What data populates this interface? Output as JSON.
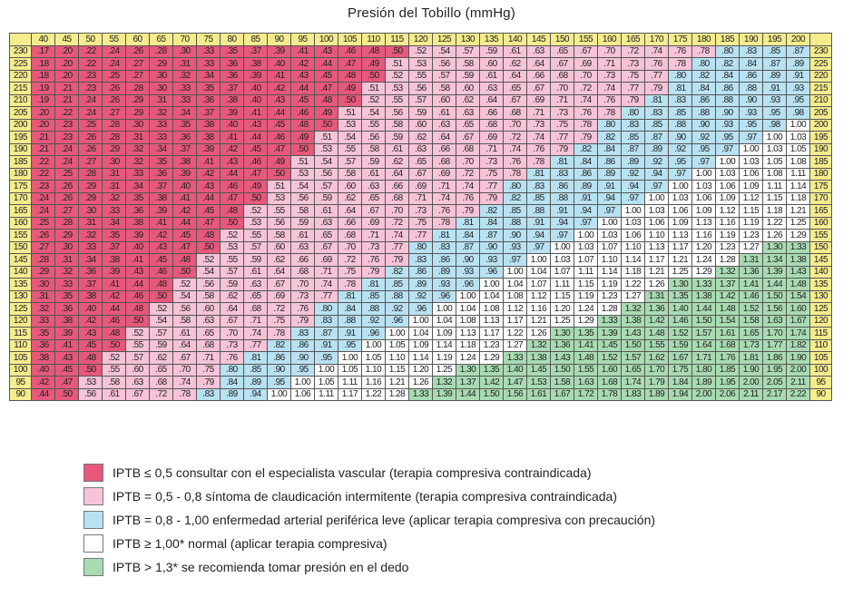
{
  "chart_data": {
    "type": "table",
    "title": "Presión del Tobillo (mmHg)",
    "columns": [
      "40",
      "45",
      "50",
      "55",
      "60",
      "65",
      "70",
      "75",
      "80",
      "85",
      "90",
      "95",
      "100",
      "105",
      "110",
      "115",
      "120",
      "125",
      "130",
      "135",
      "140",
      "145",
      "150",
      "155",
      "160",
      "165",
      "170",
      "175",
      "180",
      "185",
      "190",
      "195",
      "200"
    ],
    "rows": [
      "230",
      "225",
      "220",
      "215",
      "210",
      "205",
      "200",
      "195",
      "190",
      "185",
      "180",
      "175",
      "170",
      "165",
      "160",
      "155",
      "150",
      "145",
      "140",
      "135",
      "130",
      "125",
      "120",
      "115",
      "110",
      "105",
      "100",
      "95",
      "90"
    ],
    "values": [
      [
        ".17",
        ".20",
        ".22",
        ".24",
        ".26",
        ".28",
        ".30",
        ".33",
        ".35",
        ".37",
        ".39",
        ".41",
        ".43",
        ".46",
        ".48",
        ".50",
        ".52",
        ".54",
        ".57",
        ".59",
        ".61",
        ".63",
        ".65",
        ".67",
        ".70",
        ".72",
        ".74",
        ".76",
        ".78",
        ".80",
        ".83",
        ".85",
        ".87"
      ],
      [
        ".18",
        ".20",
        ".22",
        ".24",
        ".27",
        ".29",
        ".31",
        ".33",
        ".36",
        ".38",
        ".40",
        ".42",
        ".44",
        ".47",
        ".49",
        ".51",
        ".53",
        ".56",
        ".58",
        ".60",
        ".62",
        ".64",
        ".67",
        ".69",
        ".71",
        ".73",
        ".76",
        ".78",
        ".80",
        ".82",
        ".84",
        ".87",
        ".89"
      ],
      [
        ".18",
        ".20",
        ".23",
        ".25",
        ".27",
        ".30",
        ".32",
        ".34",
        ".36",
        ".39",
        ".41",
        ".43",
        ".45",
        ".48",
        ".50",
        ".52",
        ".55",
        ".57",
        ".59",
        ".61",
        ".64",
        ".66",
        ".68",
        ".70",
        ".73",
        ".75",
        ".77",
        ".80",
        ".82",
        ".84",
        ".86",
        ".89",
        ".91"
      ],
      [
        ".19",
        ".21",
        ".23",
        ".26",
        ".28",
        ".30",
        ".33",
        ".35",
        ".37",
        ".40",
        ".42",
        ".44",
        ".47",
        ".49",
        ".51",
        ".53",
        ".56",
        ".58",
        ".60",
        ".63",
        ".65",
        ".67",
        ".70",
        ".72",
        ".74",
        ".77",
        ".79",
        ".81",
        ".84",
        ".86",
        ".88",
        ".91",
        ".93"
      ],
      [
        ".19",
        ".21",
        ".24",
        ".26",
        ".29",
        ".31",
        ".33",
        ".36",
        ".38",
        ".40",
        ".43",
        ".45",
        ".48",
        ".50",
        ".52",
        ".55",
        ".57",
        ".60",
        ".62",
        ".64",
        ".67",
        ".69",
        ".71",
        ".74",
        ".76",
        ".79",
        ".81",
        ".83",
        ".86",
        ".88",
        ".90",
        ".93",
        ".95"
      ],
      [
        ".20",
        ".22",
        ".24",
        ".27",
        ".29",
        ".32",
        ".34",
        ".37",
        ".39",
        ".41",
        ".44",
        ".46",
        ".49",
        ".51",
        ".54",
        ".56",
        ".59",
        ".61",
        ".63",
        ".66",
        ".68",
        ".71",
        ".73",
        ".76",
        ".78",
        ".80",
        ".83",
        ".85",
        ".88",
        ".90",
        ".93",
        ".95",
        ".98"
      ],
      [
        ".20",
        ".23",
        ".25",
        ".28",
        ".30",
        ".33",
        ".35",
        ".38",
        ".40",
        ".43",
        ".45",
        ".48",
        ".50",
        ".53",
        ".55",
        ".58",
        ".60",
        ".63",
        ".65",
        ".68",
        ".70",
        ".73",
        ".75",
        ".78",
        ".80",
        ".83",
        ".85",
        ".88",
        ".90",
        ".93",
        ".95",
        ".98",
        "1.00"
      ],
      [
        ".21",
        ".23",
        ".26",
        ".28",
        ".31",
        ".33",
        ".36",
        ".38",
        ".41",
        ".44",
        ".46",
        ".49",
        ".51",
        ".54",
        ".56",
        ".59",
        ".62",
        ".64",
        ".67",
        ".69",
        ".72",
        ".74",
        ".77",
        ".79",
        ".82",
        ".85",
        ".87",
        ".90",
        ".92",
        ".95",
        ".97",
        "1.00",
        "1.03"
      ],
      [
        ".21",
        ".24",
        ".26",
        ".29",
        ".32",
        ".34",
        ".37",
        ".39",
        ".42",
        ".45",
        ".47",
        ".50",
        ".53",
        ".55",
        ".58",
        ".61",
        ".63",
        ".66",
        ".68",
        ".71",
        ".74",
        ".76",
        ".79",
        ".82",
        ".84",
        ".87",
        ".89",
        ".92",
        ".95",
        ".97",
        "1.00",
        "1.03",
        "1.05"
      ],
      [
        ".22",
        ".24",
        ".27",
        ".30",
        ".32",
        ".35",
        ".38",
        ".41",
        ".43",
        ".46",
        ".49",
        ".51",
        ".54",
        ".57",
        ".59",
        ".62",
        ".65",
        ".68",
        ".70",
        ".73",
        ".76",
        ".78",
        ".81",
        ".84",
        ".86",
        ".89",
        ".92",
        ".95",
        ".97",
        "1.00",
        "1.03",
        "1.05",
        "1.08"
      ],
      [
        ".22",
        ".25",
        ".28",
        ".31",
        ".33",
        ".36",
        ".39",
        ".42",
        ".44",
        ".47",
        ".50",
        ".53",
        ".56",
        ".58",
        ".61",
        ".64",
        ".67",
        ".69",
        ".72",
        ".75",
        ".78",
        ".81",
        ".83",
        ".86",
        ".89",
        ".92",
        ".94",
        ".97",
        "1.00",
        "1.03",
        "1.06",
        "1.08",
        "1.11"
      ],
      [
        ".23",
        ".26",
        ".29",
        ".31",
        ".34",
        ".37",
        ".40",
        ".43",
        ".46",
        ".49",
        ".51",
        ".54",
        ".57",
        ".60",
        ".63",
        ".66",
        ".69",
        ".71",
        ".74",
        ".77",
        ".80",
        ".83",
        ".86",
        ".89",
        ".91",
        ".94",
        ".97",
        "1.00",
        "1.03",
        "1.06",
        "1.09",
        "1.11",
        "1.14"
      ],
      [
        ".24",
        ".26",
        ".29",
        ".32",
        ".35",
        ".38",
        ".41",
        ".44",
        ".47",
        ".50",
        ".53",
        ".56",
        ".59",
        ".62",
        ".65",
        ".68",
        ".71",
        ".74",
        ".76",
        ".79",
        ".82",
        ".85",
        ".88",
        ".91",
        ".94",
        ".97",
        "1.00",
        "1.03",
        "1.06",
        "1.09",
        "1.12",
        "1.15",
        "1.18"
      ],
      [
        ".24",
        ".27",
        ".30",
        ".33",
        ".36",
        ".39",
        ".42",
        ".45",
        ".48",
        ".52",
        ".55",
        ".58",
        ".61",
        ".64",
        ".67",
        ".70",
        ".73",
        ".76",
        ".79",
        ".82",
        ".85",
        ".88",
        ".91",
        ".94",
        ".97",
        "1.00",
        "1.03",
        "1.06",
        "1.09",
        "1.12",
        "1.15",
        "1.18",
        "1.21"
      ],
      [
        ".25",
        ".28",
        ".31",
        ".34",
        ".38",
        ".41",
        ".44",
        ".47",
        ".50",
        ".53",
        ".56",
        ".59",
        ".63",
        ".66",
        ".69",
        ".72",
        ".75",
        ".78",
        ".81",
        ".84",
        ".88",
        ".91",
        ".94",
        ".97",
        "1.00",
        "1.03",
        "1.06",
        "1.09",
        "1.13",
        "1.16",
        "1.19",
        "1.22",
        "1.25"
      ],
      [
        ".26",
        ".29",
        ".32",
        ".35",
        ".39",
        ".42",
        ".45",
        ".48",
        ".52",
        ".55",
        ".58",
        ".61",
        ".65",
        ".68",
        ".71",
        ".74",
        ".77",
        ".81",
        ".84",
        ".87",
        ".90",
        ".94",
        ".97",
        "1.00",
        "1.03",
        "1.06",
        "1.10",
        "1.13",
        "1.16",
        "1.19",
        "1.23",
        "1.26",
        "1.29"
      ],
      [
        ".27",
        ".30",
        ".33",
        ".37",
        ".40",
        ".43",
        ".47",
        ".50",
        ".53",
        ".57",
        ".60",
        ".63",
        ".67",
        ".70",
        ".73",
        ".77",
        ".80",
        ".83",
        ".87",
        ".90",
        ".93",
        ".97",
        "1.00",
        "1.03",
        "1.07",
        "1.10",
        "1.13",
        "1.17",
        "1.20",
        "1.23",
        "1.27",
        "1.30",
        "1.33"
      ],
      [
        ".28",
        ".31",
        ".34",
        ".38",
        ".41",
        ".45",
        ".48",
        ".52",
        ".55",
        ".59",
        ".62",
        ".66",
        ".69",
        ".72",
        ".76",
        ".79",
        ".83",
        ".86",
        ".90",
        ".93",
        ".97",
        "1.00",
        "1.03",
        "1.07",
        "1.10",
        "1.14",
        "1.17",
        "1.21",
        "1.24",
        "1.28",
        "1.31",
        "1.34",
        "1.38"
      ],
      [
        ".29",
        ".32",
        ".36",
        ".39",
        ".43",
        ".46",
        ".50",
        ".54",
        ".57",
        ".61",
        ".64",
        ".68",
        ".71",
        ".75",
        ".79",
        ".82",
        ".86",
        ".89",
        ".93",
        ".96",
        "1.00",
        "1.04",
        "1.07",
        "1.11",
        "1.14",
        "1.18",
        "1.21",
        "1.25",
        "1.29",
        "1.32",
        "1.36",
        "1.39",
        "1.43"
      ],
      [
        ".30",
        ".33",
        ".37",
        ".41",
        ".44",
        ".48",
        ".52",
        ".56",
        ".59",
        ".63",
        ".67",
        ".70",
        ".74",
        ".78",
        ".81",
        ".85",
        ".89",
        ".93",
        ".96",
        "1.00",
        "1.04",
        "1.07",
        "1.11",
        "1.15",
        "1.19",
        "1.22",
        "1.26",
        "1.30",
        "1.33",
        "1.37",
        "1.41",
        "1.44",
        "1.48"
      ],
      [
        ".31",
        ".35",
        ".38",
        ".42",
        ".46",
        ".50",
        ".54",
        ".58",
        ".62",
        ".65",
        ".69",
        ".73",
        ".77",
        ".81",
        ".85",
        ".88",
        ".92",
        ".96",
        "1.00",
        "1.04",
        "1.08",
        "1.12",
        "1.15",
        "1.19",
        "1.23",
        "1.27",
        "1.31",
        "1.35",
        "1.38",
        "1.42",
        "1.46",
        "1.50",
        "1.54"
      ],
      [
        ".32",
        ".36",
        ".40",
        ".44",
        ".48",
        ".52",
        ".56",
        ".60",
        ".64",
        ".68",
        ".72",
        ".76",
        ".80",
        ".84",
        ".88",
        ".92",
        ".96",
        "1.00",
        "1.04",
        "1.08",
        "1.12",
        "1.16",
        "1.20",
        "1.24",
        "1.28",
        "1.32",
        "1.36",
        "1.40",
        "1.44",
        "1.48",
        "1.52",
        "1.56",
        "1.60"
      ],
      [
        ".33",
        ".38",
        ".42",
        ".46",
        ".50",
        ".54",
        ".58",
        ".63",
        ".67",
        ".71",
        ".75",
        ".79",
        ".83",
        ".88",
        ".92",
        ".96",
        "1.00",
        "1.04",
        "1.08",
        "1.13",
        "1.17",
        "1.21",
        "1.25",
        "1.29",
        "1.33",
        "1.38",
        "1.42",
        "1.46",
        "1.50",
        "1.54",
        "1.58",
        "1.63",
        "1.67"
      ],
      [
        ".35",
        ".39",
        ".43",
        ".48",
        ".52",
        ".57",
        ".61",
        ".65",
        ".70",
        ".74",
        ".78",
        ".83",
        ".87",
        ".91",
        ".96",
        "1.00",
        "1.04",
        "1.09",
        "1.13",
        "1.17",
        "1.22",
        "1.26",
        "1.30",
        "1.35",
        "1.39",
        "1.43",
        "1.48",
        "1.52",
        "1.57",
        "1.61",
        "1.65",
        "1.70",
        "1.74"
      ],
      [
        ".36",
        ".41",
        ".45",
        ".50",
        ".55",
        ".59",
        ".64",
        ".68",
        ".73",
        ".77",
        ".82",
        ".86",
        ".91",
        ".95",
        "1.00",
        "1.05",
        "1.09",
        "1.14",
        "1.18",
        "1.23",
        "1.27",
        "1.32",
        "1.36",
        "1.41",
        "1.45",
        "1.50",
        "1.55",
        "1.59",
        "1.64",
        "1.68",
        "1.73",
        "1.77",
        "1.82"
      ],
      [
        ".38",
        ".43",
        ".48",
        ".52",
        ".57",
        ".62",
        ".67",
        ".71",
        ".76",
        ".81",
        ".86",
        ".90",
        ".95",
        "1.00",
        "1.05",
        "1.10",
        "1.14",
        "1.19",
        "1.24",
        "1.29",
        "1.33",
        "1.38",
        "1.43",
        "1.48",
        "1.52",
        "1.57",
        "1.62",
        "1.67",
        "1.71",
        "1.76",
        "1.81",
        "1.86",
        "1.90"
      ],
      [
        ".40",
        ".45",
        ".50",
        ".55",
        ".60",
        ".65",
        ".70",
        ".75",
        ".80",
        ".85",
        ".90",
        ".95",
        "1.00",
        "1.05",
        "1.10",
        "1.15",
        "1.20",
        "1.25",
        "1.30",
        "1.35",
        "1.40",
        "1.45",
        "1.50",
        "1.55",
        "1.60",
        "1.65",
        "1.70",
        "1.75",
        "1.80",
        "1.85",
        "1.90",
        "1.95",
        "2.00"
      ],
      [
        ".42",
        ".47",
        ".53",
        ".58",
        ".63",
        ".68",
        ".74",
        ".79",
        ".84",
        ".89",
        ".95",
        "1.00",
        "1.05",
        "1.11",
        "1.16",
        "1.21",
        "1.26",
        "1.32",
        "1.37",
        "1.42",
        "1.47",
        "1.53",
        "1.58",
        "1.63",
        "1.68",
        "1.74",
        "1.79",
        "1.84",
        "1.89",
        "1.95",
        "2.00",
        "2.05",
        "2.11"
      ],
      [
        ".44",
        ".50",
        ".56",
        ".61",
        ".67",
        ".72",
        ".78",
        ".83",
        ".89",
        ".94",
        "1.00",
        "1.06",
        "1.11",
        "1.17",
        "1.22",
        "1.28",
        "1.33",
        "1.39",
        "1.44",
        "1.50",
        "1.56",
        "1.61",
        "1.67",
        "1.72",
        "1.78",
        "1.83",
        "1.89",
        "1.94",
        "2.00",
        "2.06",
        "2.11",
        "2.17",
        "2.22"
      ]
    ],
    "color_scale": {
      "red": "#e7587a",
      "pink": "#f7c3d8",
      "blue": "#b8e2f2",
      "white": "#ffffff",
      "green": "#a9dbb3",
      "header": "#f5ec8d"
    }
  },
  "legend": [
    {
      "color": "#e7587a",
      "text": "IPTB ≤ 0,5 consultar con el especialista vascular (terapia compresiva contraindicada)"
    },
    {
      "color": "#f7c3d8",
      "text": "IPTB = 0,5 - 0,8 síntoma de claudicación intermitente (terapia compresiva contraindicada)"
    },
    {
      "color": "#b8e2f2",
      "text": "IPTB = 0,8 - 1,00 enfermedad arterial periférica leve (aplicar terapia compresiva con precaución)"
    },
    {
      "color": "#ffffff",
      "text": "IPTB ≥ 1,00* normal (aplicar terapia compresiva)"
    },
    {
      "color": "#a9dbb3",
      "text": "IPTB > 1,3* se recomienda tomar presión en el dedo"
    }
  ]
}
